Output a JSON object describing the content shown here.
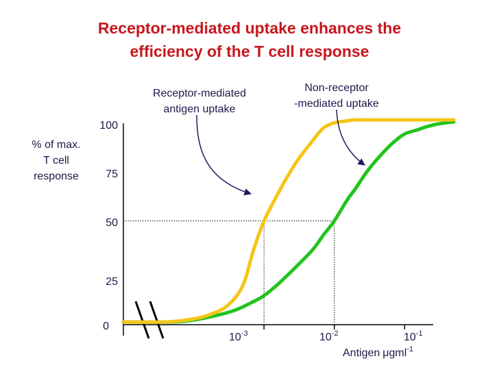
{
  "chart_data": {
    "type": "line",
    "title": "Receptor-mediated uptake enhances the efficiency of the T cell response",
    "title_lines": [
      "Receptor-mediated uptake enhances the",
      "efficiency of the T cell response"
    ],
    "ylabel_lines": [
      "% of max.",
      "T cell",
      "response"
    ],
    "xlabel": "Antigen",
    "xlabel_unit": {
      "mu": "μ",
      "base": "gml",
      "exp": "-1"
    },
    "x_scale": "log",
    "xlim": [
      1e-05,
      0.5
    ],
    "ylim": [
      0,
      100
    ],
    "y_ticks": [
      "0",
      "25",
      "50",
      "75",
      "100"
    ],
    "x_ticks": [
      {
        "value": 0.001,
        "base": "10",
        "exp": "-3"
      },
      {
        "value": 0.01,
        "base": "10",
        "exp": "-2"
      },
      {
        "value": 0.1,
        "base": "10",
        "exp": "-1"
      }
    ],
    "axis_break": true,
    "grid": false,
    "legend": "none",
    "series": [
      {
        "name_lines": [
          "Receptor-mediated",
          "antigen uptake"
        ],
        "color": "#f5c518",
        "x": [
          1e-05,
          4e-05,
          8e-05,
          0.00015,
          0.0003,
          0.0005,
          0.0007,
          0.001,
          0.0015,
          0.002,
          0.003,
          0.005,
          0.007,
          0.01,
          0.015,
          0.02,
          0.03,
          0.05,
          0.1,
          0.2,
          0.35,
          0.5
        ],
        "y": [
          0,
          0,
          1,
          3,
          8,
          18,
          35,
          50,
          62,
          70,
          80,
          90,
          96,
          98.5,
          99.5,
          100,
          100,
          100,
          100,
          100,
          100,
          100
        ]
      },
      {
        "name_lines": [
          "Non-receptor",
          "-mediated uptake"
        ],
        "color": "#22c41d",
        "x": [
          1e-05,
          5e-05,
          0.0001,
          0.0002,
          0.0004,
          0.0007,
          0.001,
          0.0015,
          0.002,
          0.003,
          0.005,
          0.007,
          0.01,
          0.015,
          0.02,
          0.03,
          0.05,
          0.07,
          0.1,
          0.15,
          0.2,
          0.3,
          0.5
        ],
        "y": [
          0,
          0,
          1,
          3,
          6,
          10,
          13,
          18,
          22,
          28,
          36,
          43,
          50,
          60,
          66,
          75,
          84,
          89,
          93,
          95,
          96.5,
          98,
          99
        ]
      }
    ],
    "guides": [
      {
        "x": 0.001,
        "y": 50
      },
      {
        "x": 0.01,
        "y": 50
      }
    ],
    "colors": {
      "title": "#c8161d",
      "text": "#1a1a4a",
      "axis": "#000000",
      "arrow": "#1a1a5e"
    }
  }
}
